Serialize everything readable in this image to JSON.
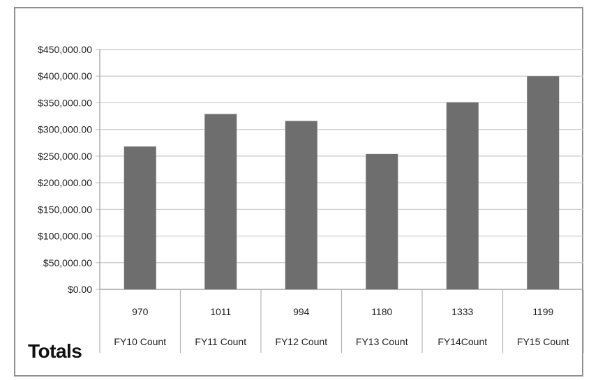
{
  "chart_data": {
    "type": "bar",
    "title": "",
    "xlabel": "",
    "ylabel": "",
    "ylim": [
      0,
      450000
    ],
    "y_ticks": [
      "$0.00",
      "$50,000.00",
      "$100,000.00",
      "$150,000.00",
      "$200,000.00",
      "$250,000.00",
      "$300,000.00",
      "$350,000.00",
      "$400,000.00",
      "$450,000.00"
    ],
    "categories": [
      "FY10 Count",
      "FY11 Count",
      "FY12 Count",
      "FY13 Count",
      "FY14Count",
      "FY15 Count"
    ],
    "counts": [
      "970",
      "1011",
      "994",
      "1180",
      "1333",
      "1199"
    ],
    "values": [
      268000,
      329000,
      316000,
      254000,
      351000,
      400000
    ],
    "bar_color": "#6e6e6e",
    "grid": true,
    "legend": "none"
  },
  "footer_label": "Totals"
}
